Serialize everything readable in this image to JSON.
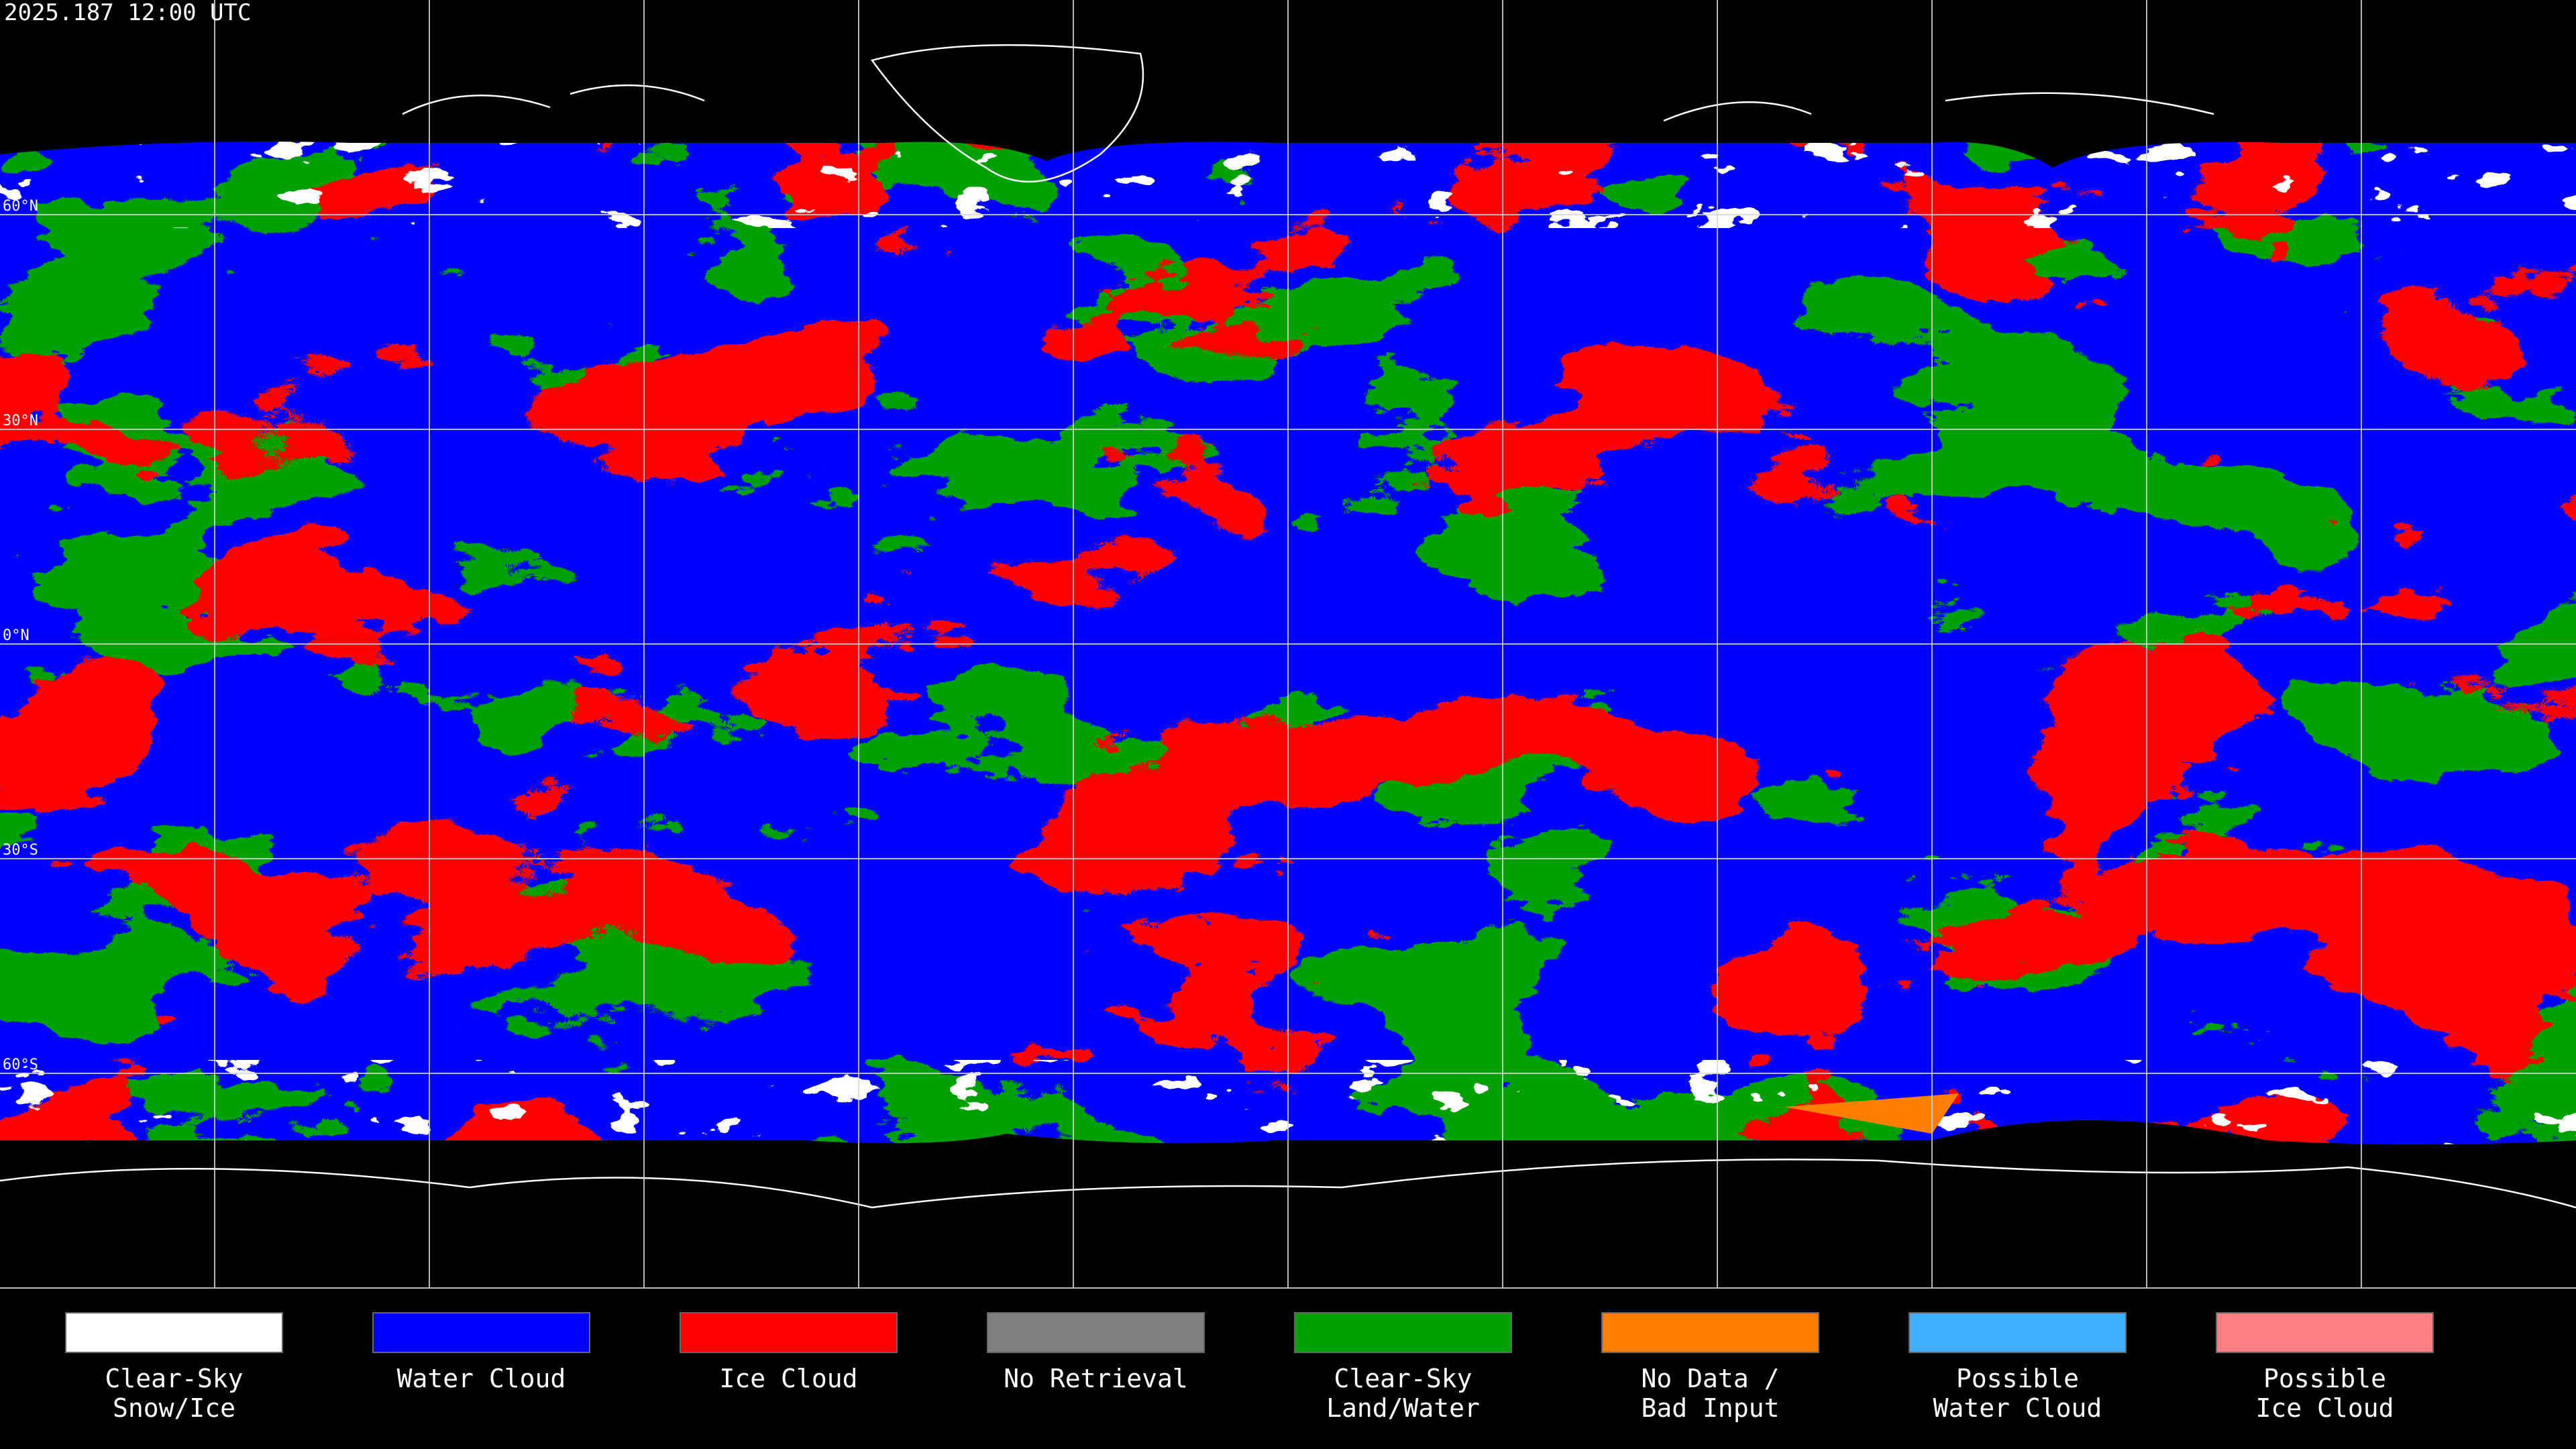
{
  "header": {
    "title": "2025.187 12:00 UTC"
  },
  "map": {
    "latitude_labels": [
      "60°N",
      "30°N",
      "0°N",
      "30°S",
      "60°S"
    ]
  },
  "legend": {
    "items": [
      {
        "lines": [
          "Clear-Sky",
          "Snow/Ice"
        ],
        "color": "#ffffff"
      },
      {
        "lines": [
          "Water Cloud"
        ],
        "color": "#0000ff"
      },
      {
        "lines": [
          "Ice Cloud"
        ],
        "color": "#ff0000"
      },
      {
        "lines": [
          "No Retrieval"
        ],
        "color": "#808080"
      },
      {
        "lines": [
          "Clear-Sky",
          "Land/Water"
        ],
        "color": "#00a000"
      },
      {
        "lines": [
          "No Data /",
          "Bad Input"
        ],
        "color": "#ff8000"
      },
      {
        "lines": [
          "Possible",
          "Water Cloud"
        ],
        "color": "#40b0ff"
      },
      {
        "lines": [
          "Possible",
          "Ice Cloud"
        ],
        "color": "#ff8080"
      }
    ]
  }
}
